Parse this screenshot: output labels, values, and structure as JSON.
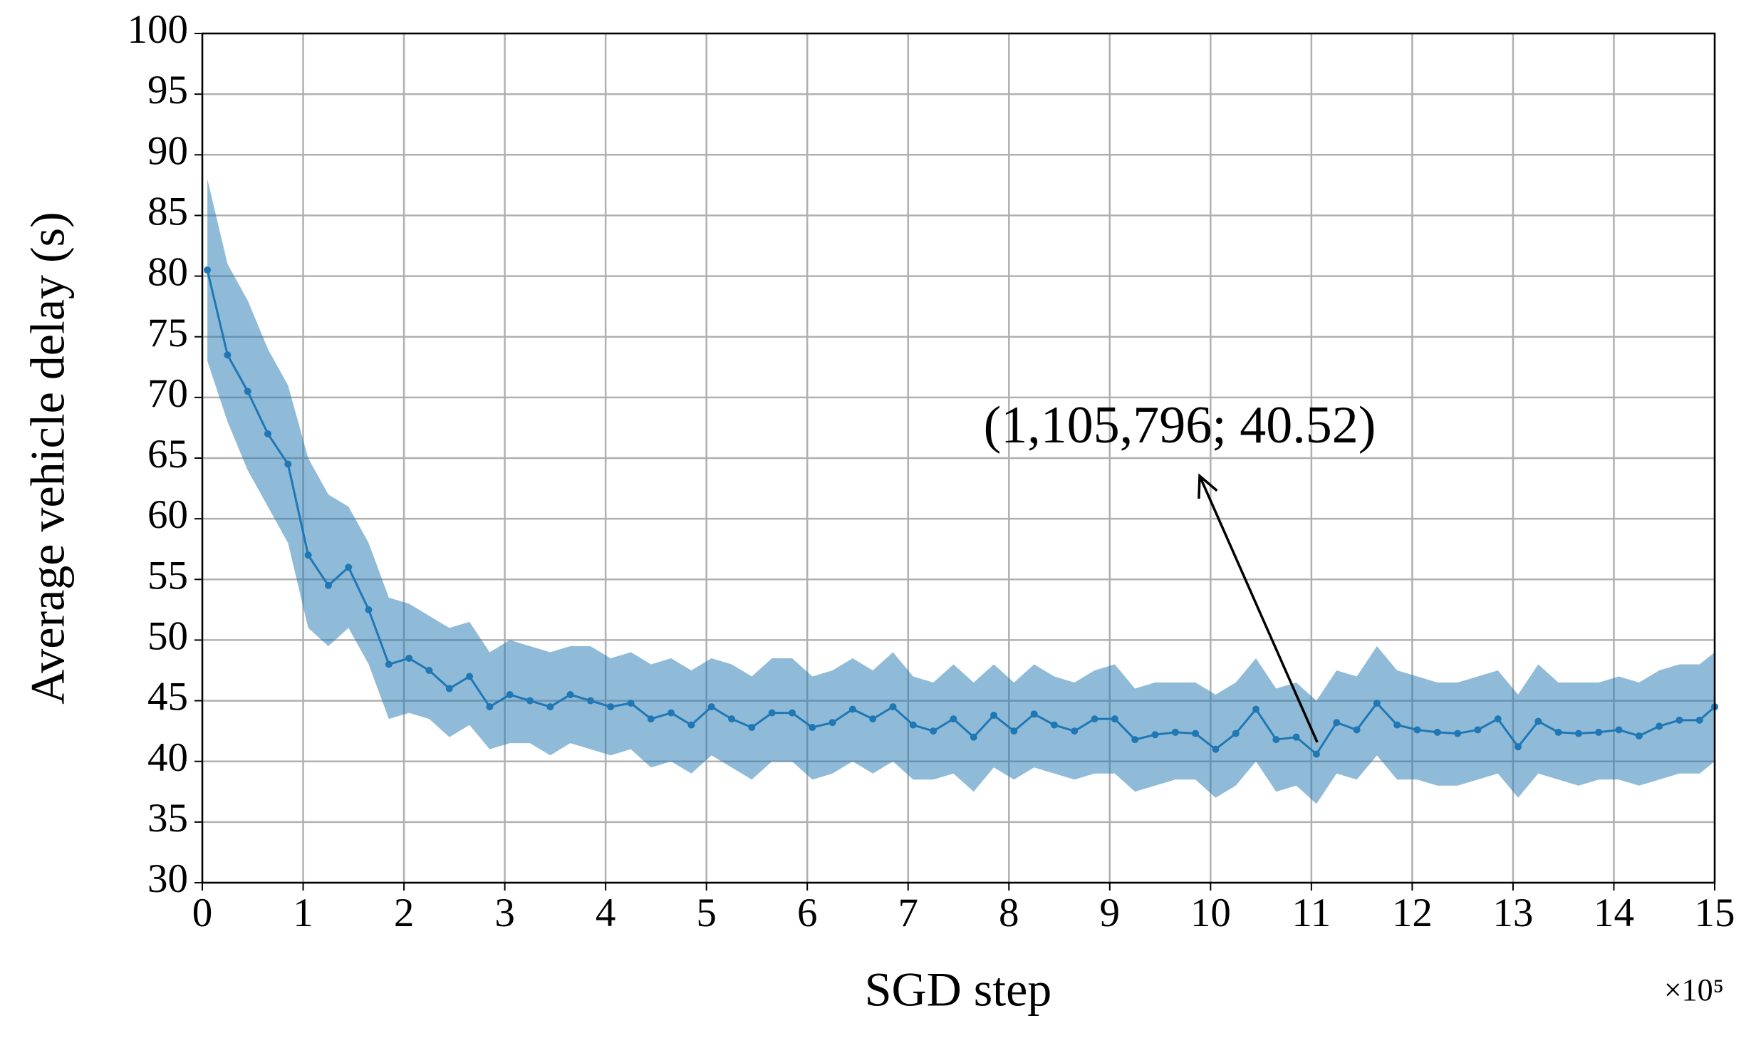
{
  "chart_data": {
    "type": "line",
    "xlabel": "SGD step",
    "ylabel": "Average vehicle delay (s)",
    "x_offset_label": "×10⁵",
    "x": [
      0.05,
      0.25,
      0.45,
      0.65,
      0.85,
      1.05,
      1.25,
      1.45,
      1.65,
      1.85,
      2.05,
      2.25,
      2.45,
      2.65,
      2.85,
      3.05,
      3.25,
      3.45,
      3.65,
      3.85,
      4.05,
      4.25,
      4.45,
      4.65,
      4.85,
      5.05,
      5.25,
      5.45,
      5.65,
      5.85,
      6.05,
      6.25,
      6.45,
      6.65,
      6.85,
      7.05,
      7.25,
      7.45,
      7.65,
      7.85,
      8.05,
      8.25,
      8.45,
      8.65,
      8.85,
      9.05,
      9.25,
      9.45,
      9.65,
      9.85,
      10.05,
      10.25,
      10.45,
      10.65,
      10.85,
      11.05,
      11.25,
      11.45,
      11.65,
      11.85,
      12.05,
      12.25,
      12.45,
      12.65,
      12.85,
      13.05,
      13.25,
      13.45,
      13.65,
      13.85,
      14.05,
      14.25,
      14.45,
      14.65,
      14.85,
      15.0
    ],
    "series": [
      {
        "color": "#1f77b4",
        "values": [
          80.5,
          73.5,
          70.5,
          67,
          64.5,
          57,
          54.5,
          56,
          52.5,
          48,
          48.5,
          47.5,
          46,
          47,
          44.5,
          45.5,
          45,
          44.5,
          45.5,
          45,
          44.5,
          44.8,
          43.5,
          44,
          43,
          44.5,
          43.5,
          42.8,
          44,
          44,
          42.8,
          43.2,
          44.3,
          43.5,
          44.5,
          43,
          42.5,
          43.5,
          42,
          43.8,
          42.5,
          43.9,
          43,
          42.5,
          43.5,
          43.5,
          41.8,
          42.2,
          42.4,
          42.3,
          41,
          42.3,
          44.3,
          41.8,
          42,
          40.6,
          43.2,
          42.6,
          44.8,
          43,
          42.6,
          42.4,
          42.3,
          42.6,
          43.5,
          41.2,
          43.3,
          42.4,
          42.3,
          42.4,
          42.6,
          42.1,
          42.9,
          43.4,
          43.4,
          44.5
        ],
        "upper": [
          88,
          81,
          78,
          74,
          71,
          65,
          62,
          61,
          58,
          53.5,
          53,
          52,
          51,
          51.5,
          49,
          50,
          49.5,
          49,
          49.5,
          49.5,
          48.5,
          49,
          48,
          48.5,
          47.5,
          48.5,
          48,
          47,
          48.5,
          48.5,
          47,
          47.5,
          48.5,
          47.5,
          49,
          47,
          46.5,
          48,
          46.5,
          48,
          46.5,
          48,
          47,
          46.5,
          47.5,
          48,
          46,
          46.5,
          46.5,
          46.5,
          45.5,
          46.5,
          48.5,
          46,
          46.5,
          45,
          47.5,
          47,
          49.5,
          47.5,
          47,
          46.5,
          46.5,
          47,
          47.5,
          45.5,
          48,
          46.5,
          46.5,
          46.5,
          47,
          46.5,
          47.5,
          48,
          48,
          49
        ],
        "lower": [
          73,
          68,
          64,
          61,
          58,
          51,
          49.5,
          51,
          48,
          43.5,
          44,
          43.5,
          42,
          43,
          41,
          41.5,
          41.5,
          40.5,
          41.5,
          41,
          40.5,
          41,
          39.5,
          40,
          39,
          40.5,
          39.5,
          38.5,
          40,
          40,
          38.5,
          39,
          40,
          39,
          40,
          38.5,
          38.5,
          39,
          37.5,
          39.5,
          38.5,
          39.5,
          39,
          38.5,
          39,
          39,
          37.5,
          38,
          38.5,
          38.5,
          37,
          38,
          40,
          37.5,
          38,
          36.5,
          39,
          38.5,
          40.5,
          38.5,
          38.5,
          38,
          38,
          38.5,
          39,
          37,
          39,
          38.5,
          38,
          38.5,
          38.5,
          38,
          38.5,
          39,
          39,
          40
        ]
      }
    ],
    "annotation": {
      "text": "(1,105,796; 40.52)",
      "x": 11.05796,
      "y": 40.52
    },
    "xlim": [
      0,
      15
    ],
    "xticks": [
      0,
      1,
      2,
      3,
      4,
      5,
      6,
      7,
      8,
      9,
      10,
      11,
      12,
      13,
      14,
      15
    ],
    "ylim": [
      30,
      100
    ],
    "yticks": [
      30,
      35,
      40,
      45,
      50,
      55,
      60,
      65,
      70,
      75,
      80,
      85,
      90,
      95,
      100
    ],
    "grid": true
  }
}
